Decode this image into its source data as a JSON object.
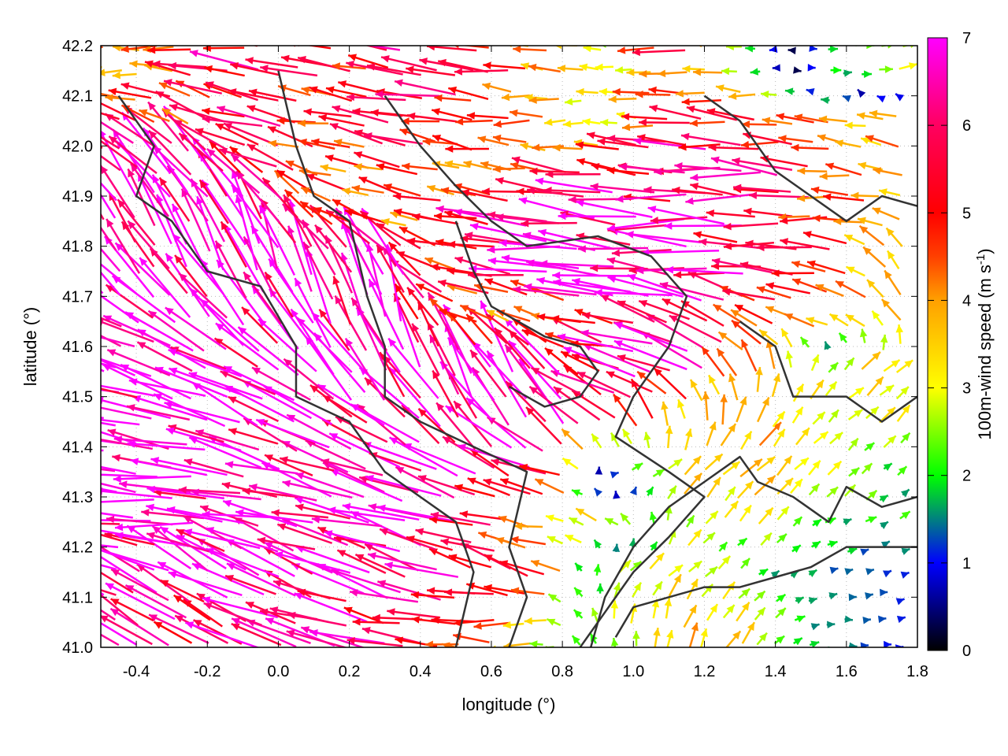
{
  "chart_data": {
    "type": "vector-field",
    "xlabel": "longitude (°)",
    "ylabel": "latitude (°)",
    "xlim": [
      -0.5,
      1.8
    ],
    "ylim": [
      41.0,
      42.2
    ],
    "xticks": [
      "-0.4",
      "-0.2",
      "0.0",
      "0.2",
      "0.4",
      "0.6",
      "0.8",
      "1.0",
      "1.2",
      "1.4",
      "1.6",
      "1.8"
    ],
    "yticks": [
      "41.0",
      "41.1",
      "41.2",
      "41.3",
      "41.4",
      "41.5",
      "41.6",
      "41.7",
      "41.8",
      "41.9",
      "42.0",
      "42.1",
      "42.2"
    ],
    "grid": true,
    "colorbar": {
      "label": "100m-wind speed (m s",
      "label_sup": "-1",
      "label_end": ")",
      "range": [
        0,
        7
      ],
      "ticks": [
        "0",
        "1",
        "2",
        "3",
        "4",
        "5",
        "6",
        "7"
      ],
      "colors": [
        "#000000",
        "#0000ff",
        "#008080",
        "#00ff00",
        "#ffff00",
        "#ffa000",
        "#ff4000",
        "#ff0000",
        "#ff0060",
        "#ff00ff"
      ]
    },
    "vectors": {
      "lon": [
        -0.45,
        -0.25,
        -0.05,
        0.15,
        0.35,
        0.55,
        0.75,
        0.95,
        1.15,
        1.35,
        1.55,
        1.75
      ],
      "lat": [
        42.15,
        42.05,
        41.95,
        41.85,
        41.75,
        41.65,
        41.55,
        41.45,
        41.35,
        41.25,
        41.15,
        41.05
      ],
      "speed_dir_rows": [
        [
          [
            4,
            180
          ],
          [
            5,
            175
          ],
          [
            6,
            170
          ],
          [
            5,
            170
          ],
          [
            6,
            165
          ],
          [
            6,
            170
          ],
          [
            4,
            175
          ],
          [
            3,
            180
          ],
          [
            5,
            175
          ],
          [
            2,
            180
          ],
          [
            2,
            0
          ],
          [
            3,
            10
          ]
        ],
        [
          [
            6,
            160
          ],
          [
            5,
            150
          ],
          [
            6,
            165
          ],
          [
            5,
            170
          ],
          [
            6,
            170
          ],
          [
            5,
            170
          ],
          [
            4,
            180
          ],
          [
            3,
            175
          ],
          [
            6,
            175
          ],
          [
            5,
            175
          ],
          [
            4,
            175
          ],
          [
            4,
            170
          ]
        ],
        [
          [
            7,
            140
          ],
          [
            7,
            130
          ],
          [
            6,
            150
          ],
          [
            4,
            165
          ],
          [
            5,
            165
          ],
          [
            4,
            170
          ],
          [
            5,
            175
          ],
          [
            6,
            172
          ],
          [
            6,
            175
          ],
          [
            6,
            175
          ],
          [
            5,
            175
          ],
          [
            4,
            170
          ]
        ],
        [
          [
            7,
            120
          ],
          [
            7,
            125
          ],
          [
            7,
            120
          ],
          [
            6,
            150
          ],
          [
            4,
            165
          ],
          [
            6,
            172
          ],
          [
            7,
            175
          ],
          [
            7,
            175
          ],
          [
            7,
            178
          ],
          [
            6,
            178
          ],
          [
            5,
            175
          ],
          [
            4,
            160
          ]
        ],
        [
          [
            7,
            130
          ],
          [
            7,
            120
          ],
          [
            7,
            110
          ],
          [
            7,
            115
          ],
          [
            7,
            130
          ],
          [
            5,
            170
          ],
          [
            7,
            175
          ],
          [
            7,
            178
          ],
          [
            7,
            175
          ],
          [
            6,
            175
          ],
          [
            5,
            170
          ],
          [
            4,
            120
          ]
        ],
        [
          [
            7,
            150
          ],
          [
            7,
            140
          ],
          [
            7,
            125
          ],
          [
            7,
            115
          ],
          [
            7,
            105
          ],
          [
            5,
            165
          ],
          [
            4,
            160
          ],
          [
            6,
            165
          ],
          [
            7,
            160
          ],
          [
            5,
            150
          ],
          [
            4,
            170
          ],
          [
            4,
            130
          ]
        ],
        [
          [
            7,
            165
          ],
          [
            7,
            160
          ],
          [
            7,
            150
          ],
          [
            7,
            130
          ],
          [
            7,
            115
          ],
          [
            7,
            110
          ],
          [
            7,
            130
          ],
          [
            6,
            170
          ],
          [
            7,
            160
          ],
          [
            5,
            110
          ],
          [
            3,
            45
          ],
          [
            4,
            40
          ]
        ],
        [
          [
            7,
            165
          ],
          [
            7,
            165
          ],
          [
            7,
            155
          ],
          [
            7,
            145
          ],
          [
            7,
            135
          ],
          [
            7,
            125
          ],
          [
            7,
            130
          ],
          [
            6,
            140
          ],
          [
            4,
            100
          ],
          [
            4,
            60
          ],
          [
            3,
            45
          ],
          [
            3,
            45
          ]
        ],
        [
          [
            7,
            175
          ],
          [
            7,
            172
          ],
          [
            7,
            168
          ],
          [
            7,
            160
          ],
          [
            7,
            155
          ],
          [
            7,
            150
          ],
          [
            6,
            160
          ],
          [
            2,
            10
          ],
          [
            4,
            45
          ],
          [
            4,
            45
          ],
          [
            3,
            45
          ],
          [
            2,
            40
          ]
        ],
        [
          [
            7,
            178
          ],
          [
            7,
            175
          ],
          [
            7,
            172
          ],
          [
            7,
            168
          ],
          [
            7,
            165
          ],
          [
            6,
            165
          ],
          [
            4,
            170
          ],
          [
            3,
            150
          ],
          [
            3,
            60
          ],
          [
            3,
            45
          ],
          [
            2,
            30
          ],
          [
            2,
            25
          ]
        ],
        [
          [
            7,
            160
          ],
          [
            7,
            150
          ],
          [
            7,
            150
          ],
          [
            7,
            155
          ],
          [
            7,
            160
          ],
          [
            6,
            165
          ],
          [
            5,
            160
          ],
          [
            3,
            45
          ],
          [
            3,
            45
          ],
          [
            2,
            40
          ],
          [
            1.5,
            20
          ],
          [
            1,
            15
          ]
        ],
        [
          [
            7,
            145
          ],
          [
            6,
            150
          ],
          [
            7,
            160
          ],
          [
            7,
            165
          ],
          [
            6,
            170
          ],
          [
            5,
            175
          ],
          [
            3,
            180
          ],
          [
            3,
            90
          ],
          [
            4,
            70
          ],
          [
            3,
            45
          ],
          [
            1.5,
            0
          ],
          [
            1,
            10
          ]
        ]
      ]
    },
    "contours": [
      [
        [
          -0.45,
          42.1
        ],
        [
          -0.35,
          42.0
        ],
        [
          -0.4,
          41.9
        ],
        [
          -0.3,
          41.85
        ],
        [
          -0.2,
          41.75
        ],
        [
          -0.05,
          41.72
        ],
        [
          0.05,
          41.6
        ],
        [
          0.05,
          41.5
        ],
        [
          0.2,
          41.45
        ],
        [
          0.3,
          41.35
        ],
        [
          0.4,
          41.3
        ],
        [
          0.5,
          41.25
        ],
        [
          0.55,
          41.15
        ],
        [
          0.5,
          41.0
        ]
      ],
      [
        [
          0.0,
          42.15
        ],
        [
          0.05,
          42.0
        ],
        [
          0.1,
          41.9
        ],
        [
          0.2,
          41.85
        ],
        [
          0.25,
          41.7
        ],
        [
          0.3,
          41.6
        ],
        [
          0.3,
          41.5
        ],
        [
          0.4,
          41.45
        ],
        [
          0.55,
          41.4
        ],
        [
          0.7,
          41.35
        ],
        [
          0.65,
          41.2
        ],
        [
          0.7,
          41.1
        ],
        [
          0.65,
          41.0
        ]
      ],
      [
        [
          0.3,
          42.1
        ],
        [
          0.4,
          42.0
        ],
        [
          0.5,
          41.92
        ],
        [
          0.6,
          41.85
        ],
        [
          0.7,
          41.8
        ],
        [
          0.9,
          41.82
        ],
        [
          1.05,
          41.78
        ],
        [
          1.15,
          41.7
        ],
        [
          1.1,
          41.6
        ],
        [
          1.0,
          41.5
        ],
        [
          0.95,
          41.42
        ],
        [
          1.1,
          41.35
        ],
        [
          1.2,
          41.3
        ],
        [
          1.1,
          41.22
        ],
        [
          1.0,
          41.15
        ],
        [
          0.9,
          41.05
        ],
        [
          0.85,
          41.0
        ]
      ],
      [
        [
          0.88,
          41.0
        ],
        [
          0.92,
          41.1
        ],
        [
          1.0,
          41.2
        ],
        [
          1.1,
          41.28
        ],
        [
          1.2,
          41.33
        ],
        [
          1.3,
          41.38
        ],
        [
          1.35,
          41.33
        ],
        [
          1.45,
          41.3
        ],
        [
          1.55,
          41.25
        ],
        [
          1.6,
          41.32
        ],
        [
          1.7,
          41.28
        ],
        [
          1.8,
          41.3
        ]
      ],
      [
        [
          0.95,
          41.02
        ],
        [
          1.0,
          41.08
        ],
        [
          1.1,
          41.1
        ],
        [
          1.2,
          41.12
        ],
        [
          1.3,
          41.12
        ],
        [
          1.4,
          41.14
        ],
        [
          1.5,
          41.16
        ],
        [
          1.6,
          41.2
        ],
        [
          1.7,
          41.2
        ],
        [
          1.8,
          41.2
        ]
      ],
      [
        [
          0.5,
          41.85
        ],
        [
          0.55,
          41.75
        ],
        [
          0.6,
          41.68
        ],
        [
          0.75,
          41.62
        ],
        [
          0.85,
          41.6
        ],
        [
          0.9,
          41.55
        ],
        [
          0.85,
          41.5
        ],
        [
          0.75,
          41.48
        ],
        [
          0.65,
          41.52
        ]
      ],
      [
        [
          1.2,
          42.1
        ],
        [
          1.3,
          42.05
        ],
        [
          1.4,
          41.95
        ],
        [
          1.5,
          41.9
        ],
        [
          1.6,
          41.85
        ],
        [
          1.7,
          41.9
        ],
        [
          1.8,
          41.88
        ]
      ],
      [
        [
          1.3,
          41.65
        ],
        [
          1.4,
          41.6
        ],
        [
          1.45,
          41.5
        ],
        [
          1.6,
          41.5
        ],
        [
          1.7,
          41.45
        ],
        [
          1.8,
          41.5
        ]
      ]
    ]
  }
}
